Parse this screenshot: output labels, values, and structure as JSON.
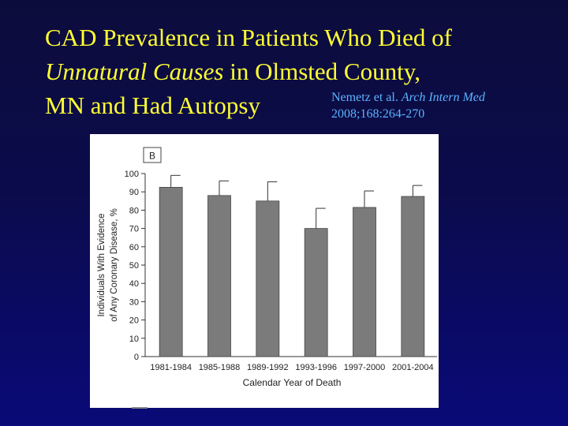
{
  "slide": {
    "title_line1": "CAD Prevalence in Patients Who Died of",
    "title_line2_italic": "Unnatural Causes",
    "title_line2_rest": " in Olmsted County,",
    "title_line3": "MN and Had Autopsy",
    "citation_authors": "Nemetz et al. ",
    "citation_journal": "Arch Intern Med",
    "citation_line2": "2008;168:264-270"
  },
  "colors": {
    "title": "#ffff33",
    "citation": "#5ab4ff",
    "bar_fill": "#7b7b7b",
    "background_top": "#0c0c3c",
    "background_bottom": "#0a0a78"
  },
  "chart_data": {
    "type": "bar",
    "panel_label": "B",
    "categories": [
      "1981-1984",
      "1985-1988",
      "1989-1992",
      "1993-1996",
      "1997-2000",
      "2001-2004"
    ],
    "values": [
      92.5,
      88,
      85,
      70,
      81.5,
      87.5
    ],
    "error_upper": [
      99,
      96,
      95.5,
      81,
      90.5,
      93.5
    ],
    "xlabel": "Calendar Year of Death",
    "ylabel_line1": "Individuals With Evidence",
    "ylabel_line2": "of Any Coronary Disease, %",
    "ylim": [
      0,
      100
    ],
    "yticks": [
      0,
      10,
      20,
      30,
      40,
      50,
      60,
      70,
      80,
      90,
      100
    ],
    "grid": false,
    "legend": "none"
  }
}
